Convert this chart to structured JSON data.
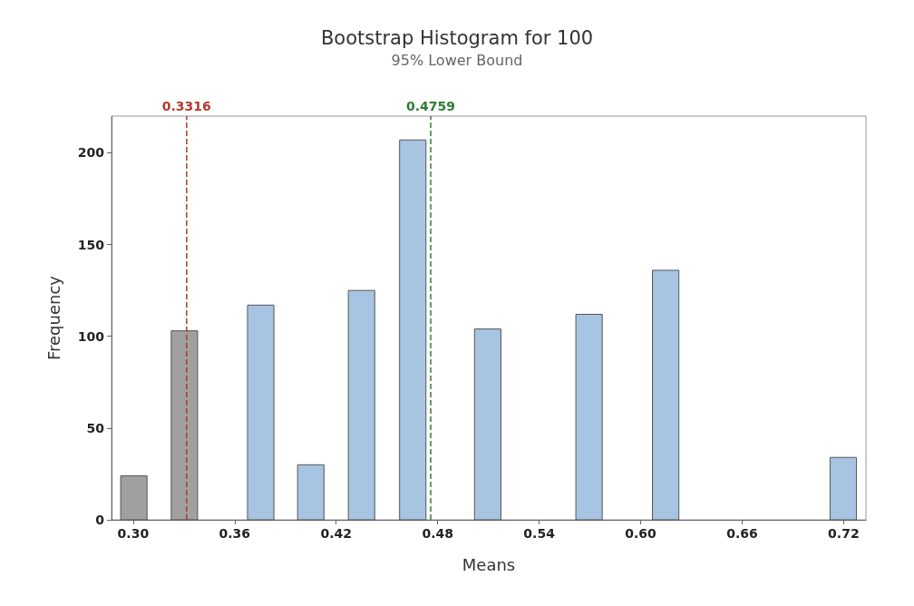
{
  "chart_data": {
    "type": "histogram",
    "title": "Bootstrap Histogram for 100",
    "subtitle": "95% Lower Bound",
    "xlabel": "Means",
    "ylabel": "Frequency",
    "bins": [
      0.2926,
      0.3082,
      0.3225,
      0.3381,
      0.3676,
      0.3832,
      0.3972,
      0.4128,
      0.4272,
      0.4428,
      0.4575,
      0.4731,
      0.5018,
      0.5174,
      0.5617,
      0.5773,
      0.607,
      0.6226,
      0.712,
      0.7276
    ],
    "series": [
      {
        "color": "#a0a0a0",
        "values": [
          24,
          0,
          103,
          null,
          null,
          null,
          null,
          null,
          null,
          null,
          null,
          null,
          null,
          null,
          null,
          null,
          null,
          null,
          null
        ]
      },
      {
        "color": "#a7c4e2",
        "values": [
          null,
          null,
          null,
          0,
          117,
          0,
          30,
          0,
          125,
          0,
          207,
          0,
          104,
          0,
          112,
          0,
          136,
          0,
          34
        ]
      }
    ],
    "xlim": [
      0.2872,
      0.7332
    ],
    "xticks": [
      {
        "value": 0.3,
        "label": "0.30"
      },
      {
        "value": 0.36,
        "label": "0.36"
      },
      {
        "value": 0.42,
        "label": "0.42"
      },
      {
        "value": 0.48,
        "label": "0.48"
      },
      {
        "value": 0.54,
        "label": "0.54"
      },
      {
        "value": 0.6,
        "label": "0.60"
      },
      {
        "value": 0.66,
        "label": "0.66"
      },
      {
        "value": 0.72,
        "label": "0.72"
      }
    ],
    "ylim": [
      0,
      220
    ],
    "yticks": [
      0,
      50,
      100,
      150,
      200
    ],
    "grid": false,
    "ref_lines": [
      {
        "axis": "x",
        "value": 0.3316,
        "label": "0.3316",
        "color": "#b03a2e",
        "line_style": "dashed"
      },
      {
        "axis": "x",
        "value": 0.4759,
        "label": "0.4759",
        "color": "#2e7d32",
        "line_style": "dashed"
      }
    ]
  }
}
